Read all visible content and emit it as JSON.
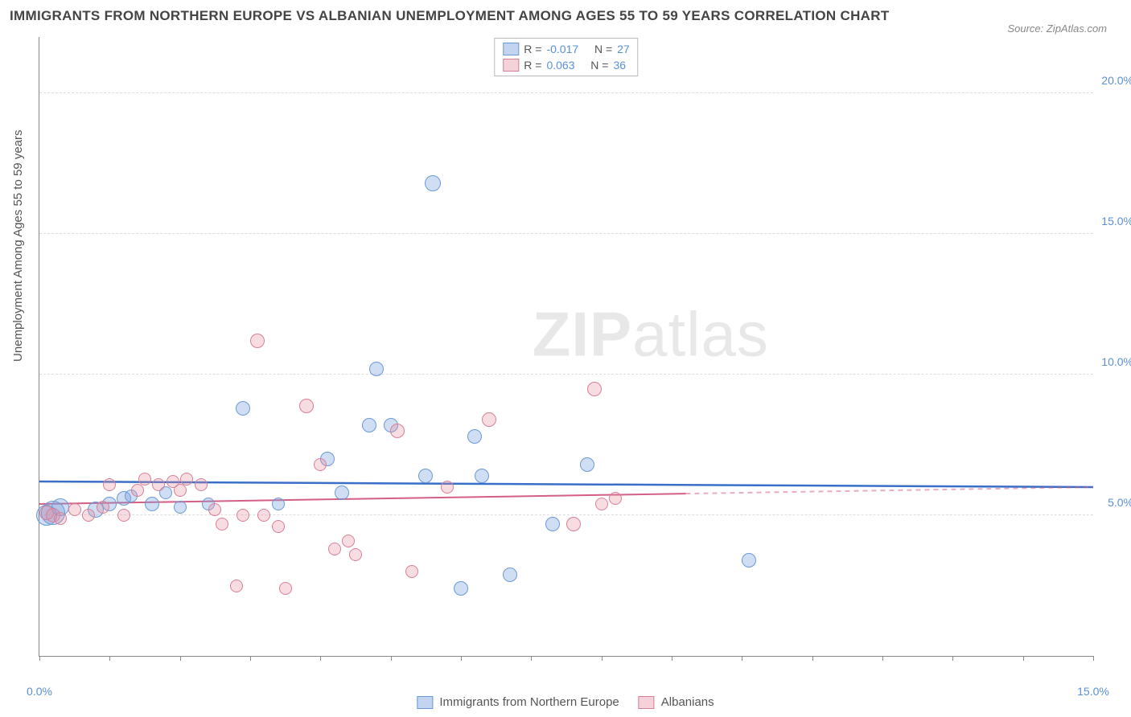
{
  "title": "IMMIGRANTS FROM NORTHERN EUROPE VS ALBANIAN UNEMPLOYMENT AMONG AGES 55 TO 59 YEARS CORRELATION CHART",
  "source": "Source: ZipAtlas.com",
  "ylabel": "Unemployment Among Ages 55 to 59 years",
  "watermark_bold": "ZIP",
  "watermark_light": "atlas",
  "chart": {
    "type": "scatter",
    "xlim": [
      0,
      15
    ],
    "ylim": [
      0,
      22
    ],
    "xticks": [
      0,
      5,
      10,
      15
    ],
    "xtick_labels": [
      "0.0%",
      "",
      "",
      "15.0%"
    ],
    "yticks": [
      5,
      10,
      15,
      20
    ],
    "ytick_labels": [
      "5.0%",
      "10.0%",
      "15.0%",
      "20.0%"
    ],
    "grid_color": "#dddddd",
    "background_color": "#ffffff",
    "axis_color": "#888888",
    "tick_label_color": "#5b8fd6",
    "series": [
      {
        "name": "Immigrants from Northern Europe",
        "color_fill": "rgba(120,160,220,0.35)",
        "color_stroke": "#6a9ad6",
        "R": "-0.017",
        "N": "27",
        "trend": {
          "y0": 6.2,
          "y1": 6.0,
          "x0": 0,
          "x1": 15
        },
        "points": [
          {
            "x": 0.1,
            "y": 5.0,
            "r": 12
          },
          {
            "x": 0.2,
            "y": 5.1,
            "r": 14
          },
          {
            "x": 0.3,
            "y": 5.3,
            "r": 10
          },
          {
            "x": 0.8,
            "y": 5.2,
            "r": 9
          },
          {
            "x": 1.0,
            "y": 5.4,
            "r": 8
          },
          {
            "x": 1.2,
            "y": 5.6,
            "r": 8
          },
          {
            "x": 1.3,
            "y": 5.7,
            "r": 7
          },
          {
            "x": 1.6,
            "y": 5.4,
            "r": 8
          },
          {
            "x": 1.8,
            "y": 5.8,
            "r": 7
          },
          {
            "x": 2.0,
            "y": 5.3,
            "r": 7
          },
          {
            "x": 2.4,
            "y": 5.4,
            "r": 7
          },
          {
            "x": 2.9,
            "y": 8.8,
            "r": 8
          },
          {
            "x": 3.4,
            "y": 5.4,
            "r": 7
          },
          {
            "x": 4.1,
            "y": 7.0,
            "r": 8
          },
          {
            "x": 4.3,
            "y": 5.8,
            "r": 8
          },
          {
            "x": 4.7,
            "y": 8.2,
            "r": 8
          },
          {
            "x": 4.8,
            "y": 10.2,
            "r": 8
          },
          {
            "x": 5.0,
            "y": 8.2,
            "r": 8
          },
          {
            "x": 5.5,
            "y": 6.4,
            "r": 8
          },
          {
            "x": 5.6,
            "y": 16.8,
            "r": 9
          },
          {
            "x": 6.0,
            "y": 2.4,
            "r": 8
          },
          {
            "x": 6.2,
            "y": 7.8,
            "r": 8
          },
          {
            "x": 6.3,
            "y": 6.4,
            "r": 8
          },
          {
            "x": 6.7,
            "y": 2.9,
            "r": 8
          },
          {
            "x": 7.3,
            "y": 4.7,
            "r": 8
          },
          {
            "x": 7.8,
            "y": 6.8,
            "r": 8
          },
          {
            "x": 10.1,
            "y": 3.4,
            "r": 8
          }
        ]
      },
      {
        "name": "Albanians",
        "color_fill": "rgba(230,140,160,0.30)",
        "color_stroke": "#d87f98",
        "R": "0.063",
        "N": "36",
        "trend": {
          "y0": 5.4,
          "y1": 6.0,
          "x0": 0,
          "x1": 15,
          "solid_to_x": 9.2
        },
        "points": [
          {
            "x": 0.1,
            "y": 5.1,
            "r": 8
          },
          {
            "x": 0.2,
            "y": 5.0,
            "r": 8
          },
          {
            "x": 0.3,
            "y": 4.9,
            "r": 7
          },
          {
            "x": 0.5,
            "y": 5.2,
            "r": 7
          },
          {
            "x": 0.7,
            "y": 5.0,
            "r": 7
          },
          {
            "x": 0.9,
            "y": 5.3,
            "r": 7
          },
          {
            "x": 1.0,
            "y": 6.1,
            "r": 7
          },
          {
            "x": 1.2,
            "y": 5.0,
            "r": 7
          },
          {
            "x": 1.4,
            "y": 5.9,
            "r": 7
          },
          {
            "x": 1.5,
            "y": 6.3,
            "r": 7
          },
          {
            "x": 1.7,
            "y": 6.1,
            "r": 7
          },
          {
            "x": 1.9,
            "y": 6.2,
            "r": 7
          },
          {
            "x": 2.0,
            "y": 5.9,
            "r": 7
          },
          {
            "x": 2.1,
            "y": 6.3,
            "r": 7
          },
          {
            "x": 2.3,
            "y": 6.1,
            "r": 7
          },
          {
            "x": 2.5,
            "y": 5.2,
            "r": 7
          },
          {
            "x": 2.6,
            "y": 4.7,
            "r": 7
          },
          {
            "x": 2.8,
            "y": 2.5,
            "r": 7
          },
          {
            "x": 2.9,
            "y": 5.0,
            "r": 7
          },
          {
            "x": 3.1,
            "y": 11.2,
            "r": 8
          },
          {
            "x": 3.2,
            "y": 5.0,
            "r": 7
          },
          {
            "x": 3.4,
            "y": 4.6,
            "r": 7
          },
          {
            "x": 3.5,
            "y": 2.4,
            "r": 7
          },
          {
            "x": 3.8,
            "y": 8.9,
            "r": 8
          },
          {
            "x": 4.0,
            "y": 6.8,
            "r": 7
          },
          {
            "x": 4.2,
            "y": 3.8,
            "r": 7
          },
          {
            "x": 4.4,
            "y": 4.1,
            "r": 7
          },
          {
            "x": 4.5,
            "y": 3.6,
            "r": 7
          },
          {
            "x": 5.1,
            "y": 8.0,
            "r": 8
          },
          {
            "x": 5.3,
            "y": 3.0,
            "r": 7
          },
          {
            "x": 5.8,
            "y": 6.0,
            "r": 7
          },
          {
            "x": 6.4,
            "y": 8.4,
            "r": 8
          },
          {
            "x": 7.6,
            "y": 4.7,
            "r": 8
          },
          {
            "x": 7.9,
            "y": 9.5,
            "r": 8
          },
          {
            "x": 8.2,
            "y": 5.6,
            "r": 7
          },
          {
            "x": 8.0,
            "y": 5.4,
            "r": 7
          }
        ]
      }
    ]
  },
  "top_legend": {
    "row1_label": "R =",
    "row1_n_label": "N =",
    "row2_label": "R =",
    "row2_n_label": "N ="
  },
  "bottom_legend": {
    "label1": "Immigrants from Northern Europe",
    "label2": "Albanians"
  }
}
